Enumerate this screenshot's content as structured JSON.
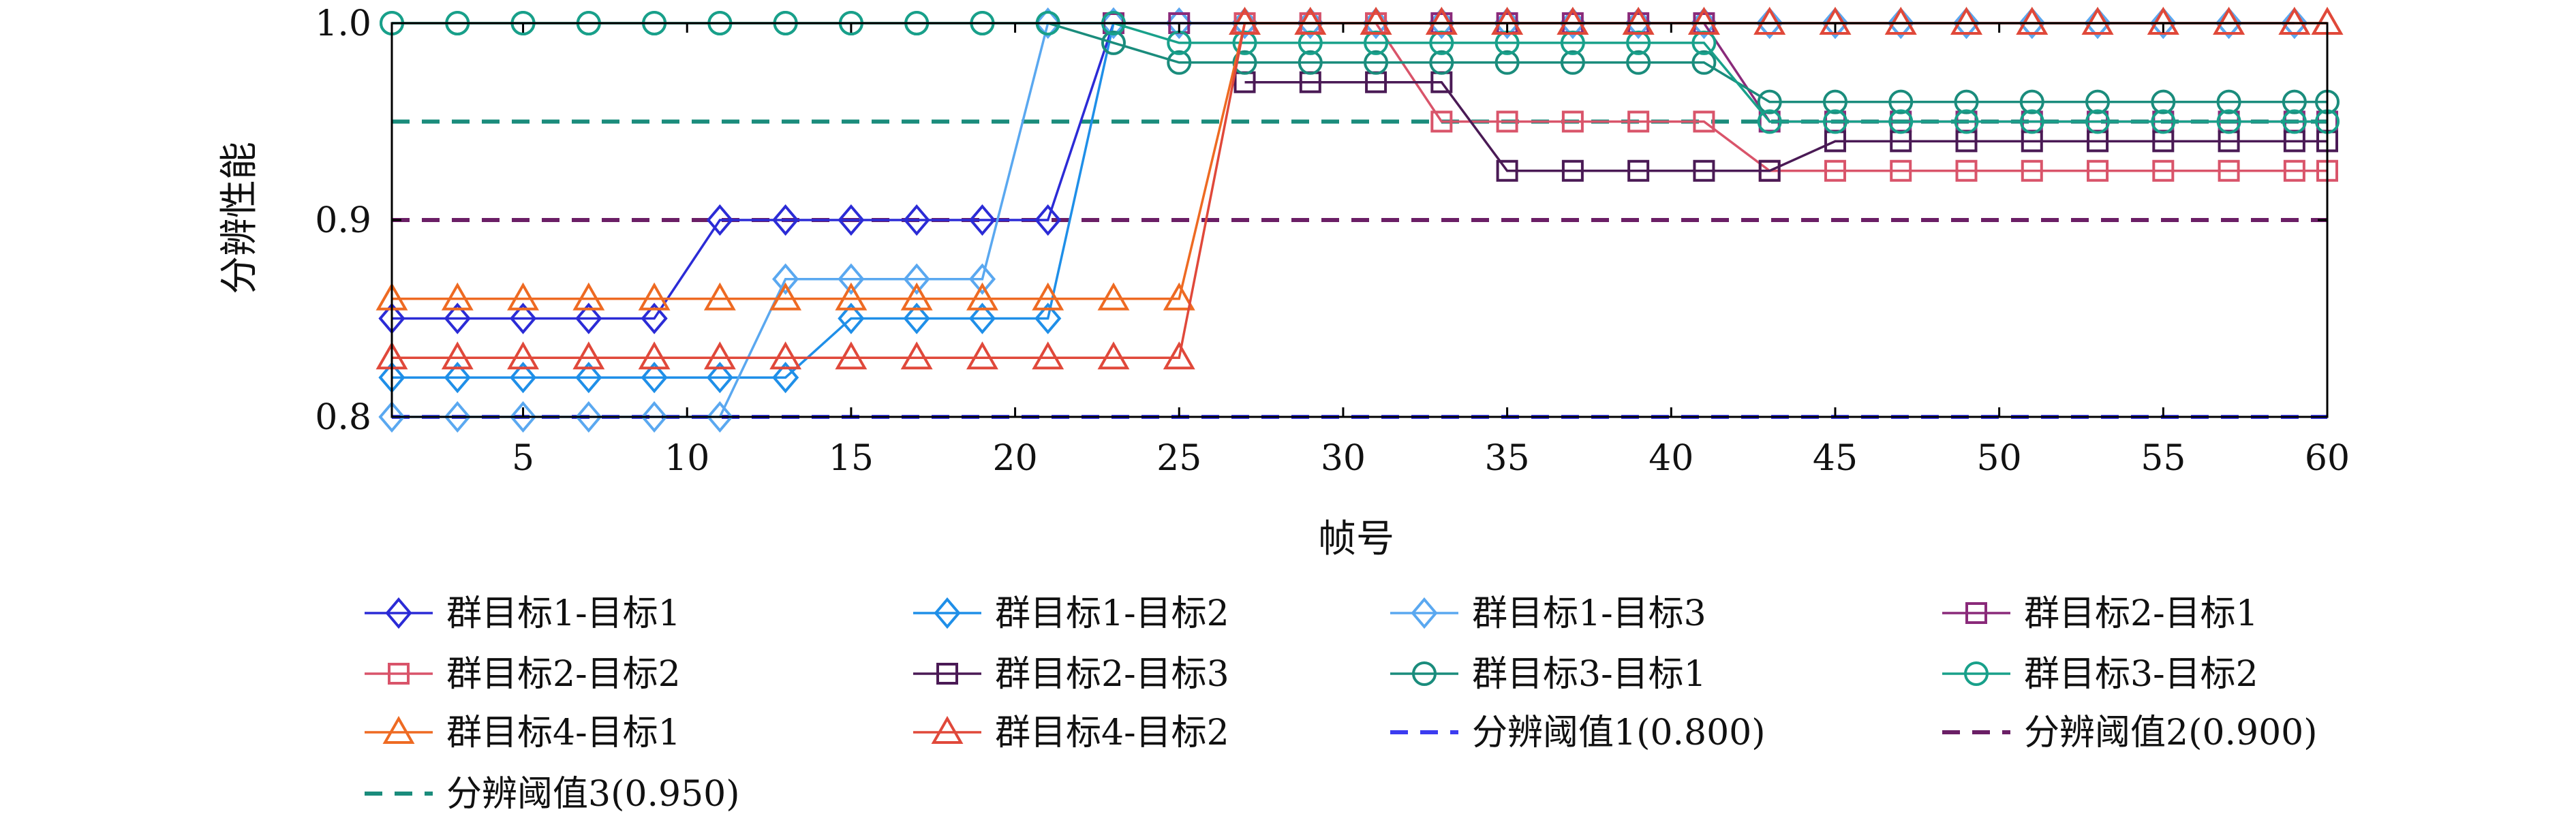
{
  "chart_data": {
    "type": "line",
    "xlabel": "帧号",
    "ylabel": "分辨性能",
    "xlim": [
      1,
      60
    ],
    "ylim": [
      0.8,
      1.0
    ],
    "xticks": [
      5,
      10,
      15,
      20,
      25,
      30,
      35,
      40,
      45,
      50,
      55,
      60
    ],
    "xtick_labels": [
      "5",
      "10",
      "15",
      "20",
      "25",
      "30",
      "35",
      "40",
      "45",
      "50",
      "55",
      "60"
    ],
    "yticks": [
      0.8,
      0.9,
      1.0
    ],
    "ytick_labels": [
      "0.8",
      "0.9",
      "1.0"
    ],
    "grid": false,
    "legend_position": "bottom",
    "series": [
      {
        "name": "群目标1-目标1",
        "color": "#2b2bd6",
        "marker": "diamond",
        "x": [
          1,
          3,
          5,
          7,
          9,
          11,
          13,
          15,
          17,
          19,
          21,
          23,
          25,
          27,
          29,
          31,
          33,
          35,
          37,
          39,
          41,
          43,
          45,
          47,
          49,
          51,
          53,
          55,
          57,
          59
        ],
        "y": [
          0.85,
          0.85,
          0.85,
          0.85,
          0.85,
          0.9,
          0.9,
          0.9,
          0.9,
          0.9,
          0.9,
          1.0,
          1.0,
          1.0,
          1.0,
          1.0,
          1.0,
          1.0,
          1.0,
          1.0,
          1.0,
          1.0,
          1.0,
          1.0,
          1.0,
          1.0,
          1.0,
          1.0,
          1.0,
          1.0
        ]
      },
      {
        "name": "群目标1-目标2",
        "color": "#1f8fe8",
        "marker": "diamond",
        "x": [
          1,
          3,
          5,
          7,
          9,
          11,
          13,
          15,
          17,
          19,
          21,
          23,
          25,
          27,
          29,
          31,
          33,
          35,
          37,
          39,
          41,
          43,
          45,
          47,
          49,
          51,
          53,
          55,
          57,
          59
        ],
        "y": [
          0.82,
          0.82,
          0.82,
          0.82,
          0.82,
          0.82,
          0.82,
          0.85,
          0.85,
          0.85,
          0.85,
          1.0,
          1.0,
          1.0,
          1.0,
          1.0,
          1.0,
          1.0,
          1.0,
          1.0,
          1.0,
          1.0,
          1.0,
          1.0,
          1.0,
          1.0,
          1.0,
          1.0,
          1.0,
          1.0
        ]
      },
      {
        "name": "群目标1-目标3",
        "color": "#5aa8f0",
        "marker": "diamond",
        "x": [
          1,
          3,
          5,
          7,
          9,
          11,
          13,
          15,
          17,
          19,
          21,
          23,
          25,
          27,
          29,
          31,
          33,
          35,
          37,
          39,
          41,
          43,
          45,
          47,
          49,
          51,
          53,
          55,
          57,
          59
        ],
        "y": [
          0.8,
          0.8,
          0.8,
          0.8,
          0.8,
          0.8,
          0.87,
          0.87,
          0.87,
          0.87,
          1.0,
          1.0,
          1.0,
          1.0,
          1.0,
          1.0,
          1.0,
          1.0,
          1.0,
          1.0,
          1.0,
          1.0,
          1.0,
          1.0,
          1.0,
          1.0,
          1.0,
          1.0,
          1.0,
          1.0
        ]
      },
      {
        "name": "群目标2-目标1",
        "color": "#8a2a7a",
        "marker": "square",
        "x": [
          23,
          25,
          27,
          29,
          31,
          33,
          35,
          37,
          39,
          41,
          43,
          45,
          47,
          49,
          51,
          53,
          55,
          57,
          59,
          60
        ],
        "y": [
          1.0,
          1.0,
          1.0,
          1.0,
          1.0,
          1.0,
          1.0,
          1.0,
          1.0,
          1.0,
          0.95,
          0.95,
          0.95,
          0.95,
          0.95,
          0.95,
          0.95,
          0.95,
          0.95,
          0.95
        ]
      },
      {
        "name": "群目标2-目标2",
        "color": "#d9546a",
        "marker": "square",
        "x": [
          27,
          29,
          31,
          33,
          35,
          37,
          39,
          41,
          43,
          45,
          47,
          49,
          51,
          53,
          55,
          57,
          59,
          60
        ],
        "y": [
          1.0,
          1.0,
          1.0,
          0.95,
          0.95,
          0.95,
          0.95,
          0.95,
          0.925,
          0.925,
          0.925,
          0.925,
          0.925,
          0.925,
          0.925,
          0.925,
          0.925,
          0.925
        ]
      },
      {
        "name": "群目标2-目标3",
        "color": "#4a1a55",
        "marker": "square",
        "x": [
          27,
          29,
          31,
          33,
          35,
          37,
          39,
          41,
          43,
          45,
          47,
          49,
          51,
          53,
          55,
          57,
          59,
          60
        ],
        "y": [
          0.97,
          0.97,
          0.97,
          0.97,
          0.925,
          0.925,
          0.925,
          0.925,
          0.925,
          0.94,
          0.94,
          0.94,
          0.94,
          0.94,
          0.94,
          0.94,
          0.94,
          0.94
        ]
      },
      {
        "name": "群目标3-目标1",
        "color": "#1a8c7c",
        "marker": "circle",
        "x": [
          1,
          3,
          5,
          7,
          9,
          11,
          13,
          15,
          17,
          19,
          21,
          23,
          25,
          27,
          29,
          31,
          33,
          35,
          37,
          39,
          41,
          43,
          45,
          47,
          49,
          51,
          53,
          55,
          57,
          59,
          60
        ],
        "y": [
          1.0,
          1.0,
          1.0,
          1.0,
          1.0,
          1.0,
          1.0,
          1.0,
          1.0,
          1.0,
          1.0,
          0.99,
          0.98,
          0.98,
          0.98,
          0.98,
          0.98,
          0.98,
          0.98,
          0.98,
          0.98,
          0.96,
          0.96,
          0.96,
          0.96,
          0.96,
          0.96,
          0.96,
          0.96,
          0.96,
          0.96
        ]
      },
      {
        "name": "群目标3-目标2",
        "color": "#18a08a",
        "marker": "circle",
        "x": [
          1,
          3,
          5,
          7,
          9,
          11,
          13,
          15,
          17,
          19,
          21,
          23,
          25,
          27,
          29,
          31,
          33,
          35,
          37,
          39,
          41,
          43,
          45,
          47,
          49,
          51,
          53,
          55,
          57,
          59,
          60
        ],
        "y": [
          1.0,
          1.0,
          1.0,
          1.0,
          1.0,
          1.0,
          1.0,
          1.0,
          1.0,
          1.0,
          1.0,
          1.0,
          0.99,
          0.99,
          0.99,
          0.99,
          0.99,
          0.99,
          0.99,
          0.99,
          0.99,
          0.95,
          0.95,
          0.95,
          0.95,
          0.95,
          0.95,
          0.95,
          0.95,
          0.95,
          0.95
        ]
      },
      {
        "name": "群目标4-目标1",
        "color": "#ee6a22",
        "marker": "triangle",
        "x": [
          1,
          3,
          5,
          7,
          9,
          11,
          13,
          15,
          17,
          19,
          21,
          23,
          25,
          27,
          29,
          31,
          33,
          35,
          37,
          39,
          41,
          43,
          45,
          47,
          49,
          51,
          53,
          55,
          57,
          59,
          60
        ],
        "y": [
          0.86,
          0.86,
          0.86,
          0.86,
          0.86,
          0.86,
          0.86,
          0.86,
          0.86,
          0.86,
          0.86,
          0.86,
          0.86,
          1.0,
          1.0,
          1.0,
          1.0,
          1.0,
          1.0,
          1.0,
          1.0,
          1.0,
          1.0,
          1.0,
          1.0,
          1.0,
          1.0,
          1.0,
          1.0,
          1.0,
          1.0
        ]
      },
      {
        "name": "群目标4-目标2",
        "color": "#e0483a",
        "marker": "triangle",
        "x": [
          1,
          3,
          5,
          7,
          9,
          11,
          13,
          15,
          17,
          19,
          21,
          23,
          25,
          27,
          29,
          31,
          33,
          35,
          37,
          39,
          41,
          43,
          45,
          47,
          49,
          51,
          53,
          55,
          57,
          59,
          60
        ],
        "y": [
          0.83,
          0.83,
          0.83,
          0.83,
          0.83,
          0.83,
          0.83,
          0.83,
          0.83,
          0.83,
          0.83,
          0.83,
          0.83,
          1.0,
          1.0,
          1.0,
          1.0,
          1.0,
          1.0,
          1.0,
          1.0,
          1.0,
          1.0,
          1.0,
          1.0,
          1.0,
          1.0,
          1.0,
          1.0,
          1.0,
          1.0
        ]
      }
    ],
    "thresholds": [
      {
        "name": "分辨阈值1(0.800)",
        "value": 0.8,
        "color": "#3c3cf0"
      },
      {
        "name": "分辨阈值2(0.900)",
        "value": 0.9,
        "color": "#6b1f66"
      },
      {
        "name": "分辨阈值3(0.950)",
        "value": 0.95,
        "color": "#1a8c7c"
      }
    ]
  }
}
